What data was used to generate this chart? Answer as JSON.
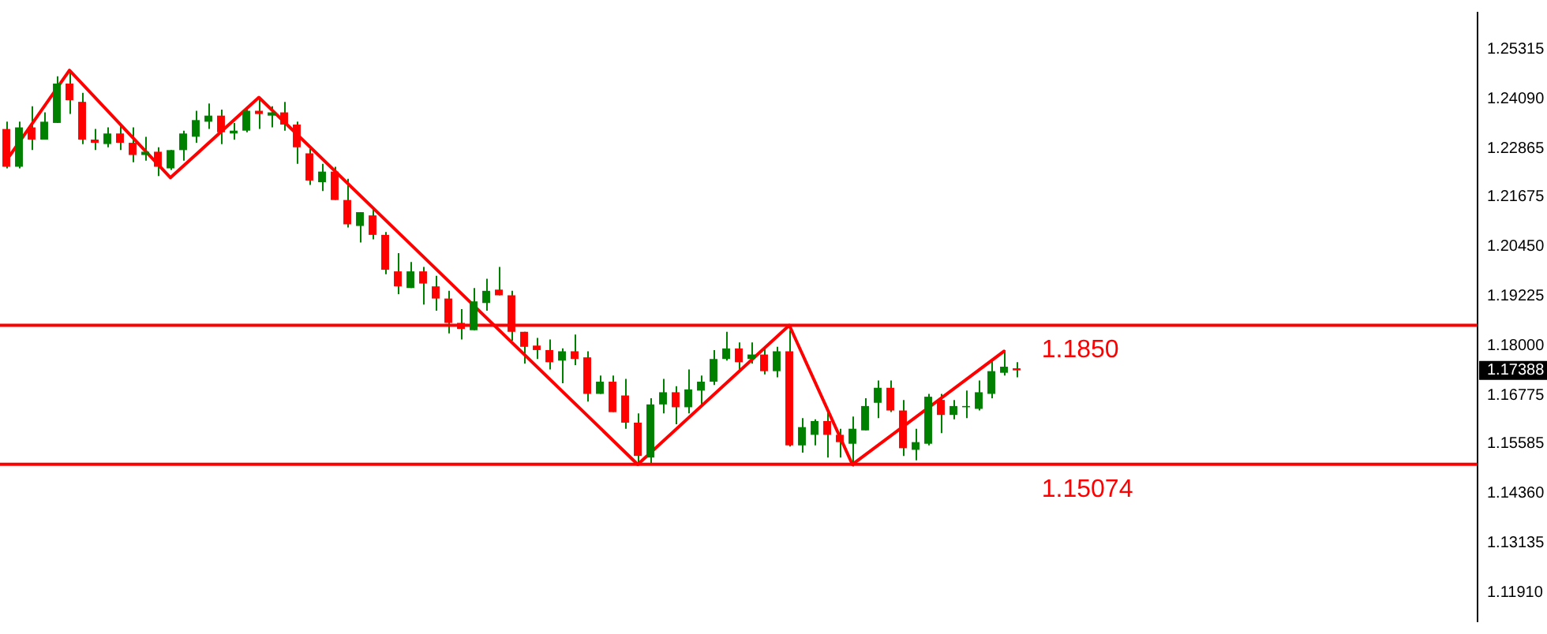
{
  "chart_data": {
    "type": "candlestick",
    "categories": [
      null,
      null,
      null,
      null,
      null,
      null,
      null,
      null,
      null,
      null,
      null,
      null,
      null,
      null,
      null,
      null,
      null,
      null,
      null,
      null,
      null,
      null,
      null,
      null,
      null,
      null,
      null,
      null,
      null,
      null,
      null,
      null,
      null,
      null,
      null,
      null,
      null,
      null,
      null,
      null,
      null,
      null,
      null,
      null,
      null,
      null,
      null,
      null,
      null,
      null,
      null,
      null,
      null,
      null,
      null,
      null,
      null,
      null,
      null,
      null,
      null,
      null,
      null,
      null,
      null,
      null,
      null,
      null,
      null,
      null,
      null,
      null,
      null,
      null,
      null,
      null,
      null,
      null,
      null,
      null,
      null,
      null,
      null,
      null,
      null,
      null,
      null,
      null,
      null,
      null,
      null,
      null,
      null,
      null,
      null,
      null,
      null,
      null,
      null,
      null,
      null,
      null,
      null,
      null,
      null,
      null,
      null,
      null,
      null,
      null,
      null,
      null,
      null,
      null,
      null,
      null,
      null
    ],
    "series": [
      {
        "color": "#008000",
        "ohlc": [
          [
            1.2334,
            1.2352,
            1.2237,
            1.2241
          ],
          [
            1.2241,
            1.2352,
            1.2237,
            1.2338
          ],
          [
            1.2338,
            1.239,
            1.2282,
            1.2308
          ],
          [
            1.2308,
            1.2375,
            1.2308,
            1.2352
          ],
          [
            1.2349,
            1.2464,
            1.2349,
            1.2446
          ],
          [
            1.2446,
            1.2479,
            1.2371,
            1.2405
          ],
          [
            1.2401,
            1.2423,
            1.2297,
            1.2308
          ],
          [
            1.2308,
            1.2334,
            1.2282,
            1.23
          ],
          [
            1.2297,
            1.2338,
            1.2289,
            1.2323
          ],
          [
            1.2323,
            1.2345,
            1.2282,
            1.23
          ],
          [
            1.23,
            1.2338,
            1.2252,
            1.227
          ],
          [
            1.227,
            1.2315,
            1.2256,
            1.2278
          ],
          [
            1.2278,
            1.2289,
            1.2218,
            1.2241
          ],
          [
            1.2237,
            1.2282,
            1.2233,
            1.2282
          ],
          [
            1.2282,
            1.233,
            1.2256,
            1.2323
          ],
          [
            1.2315,
            1.2379,
            1.23,
            1.2356
          ],
          [
            1.2352,
            1.2397,
            1.2334,
            1.2367
          ],
          [
            1.2367,
            1.2382,
            1.2297,
            1.2326
          ],
          [
            1.2323,
            1.2349,
            1.2308,
            1.233
          ],
          [
            1.233,
            1.2382,
            1.2326,
            1.2379
          ],
          [
            1.2379,
            1.2408,
            1.2334,
            1.2371
          ],
          [
            1.2367,
            1.239,
            1.2338,
            1.2375
          ],
          [
            1.2375,
            1.2401,
            1.233,
            1.2345
          ],
          [
            1.2345,
            1.2352,
            1.2248,
            1.2289
          ],
          [
            1.2274,
            1.2285,
            1.2196,
            1.2207
          ],
          [
            1.2203,
            1.2248,
            1.2181,
            1.2229
          ],
          [
            1.2229,
            1.2241,
            1.2159,
            1.2159
          ],
          [
            1.2159,
            1.2211,
            1.2091,
            1.2099
          ],
          [
            1.2095,
            1.2129,
            1.2054,
            1.2129
          ],
          [
            1.2121,
            1.214,
            1.2062,
            1.2073
          ],
          [
            1.2073,
            1.208,
            1.1976,
            1.1987
          ],
          [
            1.1983,
            1.2028,
            1.1927,
            1.1946
          ],
          [
            1.1942,
            1.2006,
            1.1942,
            1.1983
          ],
          [
            1.1983,
            1.1994,
            1.1901,
            1.1953
          ],
          [
            1.1946,
            1.1972,
            1.1886,
            1.1916
          ],
          [
            1.1916,
            1.1935,
            1.183,
            1.1856
          ],
          [
            1.1856,
            1.189,
            1.1815,
            1.1841
          ],
          [
            1.1838,
            1.1942,
            1.1838,
            1.1909
          ],
          [
            1.1905,
            1.1965,
            1.1886,
            1.1935
          ],
          [
            1.1938,
            1.1994,
            1.1924,
            1.1924
          ],
          [
            1.1924,
            1.1935,
            1.1812,
            1.1834
          ],
          [
            1.1834,
            1.1834,
            1.1756,
            1.1797
          ],
          [
            1.18,
            1.1819,
            1.1767,
            1.1789
          ],
          [
            1.1789,
            1.1815,
            1.1741,
            1.1759
          ],
          [
            1.1763,
            1.1793,
            1.1707,
            1.1786
          ],
          [
            1.1786,
            1.1827,
            1.1752,
            1.1767
          ],
          [
            1.1771,
            1.1786,
            1.1662,
            1.1681
          ],
          [
            1.1681,
            1.1726,
            1.1681,
            1.1711
          ],
          [
            1.1711,
            1.1726,
            1.1636,
            1.1636
          ],
          [
            1.1677,
            1.1718,
            1.1595,
            1.161
          ],
          [
            1.161,
            1.1633,
            1.1506,
            1.1528
          ],
          [
            1.1524,
            1.167,
            1.151,
            1.1655
          ],
          [
            1.1655,
            1.1718,
            1.1633,
            1.1685
          ],
          [
            1.1685,
            1.17,
            1.1606,
            1.1648
          ],
          [
            1.1648,
            1.1741,
            1.1633,
            1.1692
          ],
          [
            1.1689,
            1.1726,
            1.1651,
            1.1711
          ],
          [
            1.1711,
            1.1789,
            1.1703,
            1.1767
          ],
          [
            1.1767,
            1.1834,
            1.1763,
            1.1793
          ],
          [
            1.1793,
            1.1808,
            1.1737,
            1.1759
          ],
          [
            1.1767,
            1.1808,
            1.1756,
            1.1778
          ],
          [
            1.1778,
            1.1793,
            1.1729,
            1.1737
          ],
          [
            1.1737,
            1.1797,
            1.1722,
            1.1786
          ],
          [
            1.1786,
            1.1838,
            1.1551,
            1.1554
          ],
          [
            1.1554,
            1.1621,
            1.1536,
            1.1599
          ],
          [
            1.158,
            1.1618,
            1.1554,
            1.1614
          ],
          [
            1.1614,
            1.1636,
            1.1524,
            1.158
          ],
          [
            1.158,
            1.1595,
            1.1524,
            1.1562
          ],
          [
            1.1558,
            1.1625,
            1.1502,
            1.1595
          ],
          [
            1.1591,
            1.167,
            1.1591,
            1.1651
          ],
          [
            1.1659,
            1.1714,
            1.1621,
            1.1696
          ],
          [
            1.1696,
            1.1714,
            1.1636,
            1.164
          ],
          [
            1.164,
            1.1666,
            1.1528,
            1.1547
          ],
          [
            1.1543,
            1.1595,
            1.1517,
            1.1562
          ],
          [
            1.1558,
            1.1681,
            1.1554,
            1.1674
          ],
          [
            1.1666,
            1.1681,
            1.1584,
            1.1629
          ],
          [
            1.1629,
            1.1666,
            1.1618,
            1.1651
          ],
          [
            1.1648,
            1.1689,
            1.1621,
            1.1651
          ],
          [
            1.1644,
            1.1714,
            1.164,
            1.1685
          ],
          [
            1.1681,
            1.1763,
            1.167,
            1.1737
          ],
          [
            1.1733,
            1.1789,
            1.1726,
            1.1748
          ],
          [
            1.1744,
            1.1759,
            1.1722,
            1.1739
          ],
          null,
          null,
          null,
          null,
          null,
          null,
          null,
          null,
          null,
          null,
          null,
          null,
          null,
          null,
          null,
          null,
          null,
          null,
          null,
          null,
          null,
          null,
          null,
          null,
          null,
          null,
          null,
          null,
          null,
          null,
          null,
          null,
          null,
          null,
          null,
          null
        ],
        "colors": [
          "#ff0000",
          "#008000",
          "#ff0000",
          "#008000",
          "#008000",
          "#ff0000",
          "#ff0000",
          "#ff0000",
          "#008000",
          "#ff0000",
          "#ff0000",
          "#008000",
          "#ff0000",
          "#008000",
          "#008000",
          "#008000",
          "#008000",
          "#ff0000",
          "#008000",
          "#008000",
          "#ff0000",
          "#008000",
          "#ff0000",
          "#ff0000",
          "#ff0000",
          "#008000",
          "#ff0000",
          "#ff0000",
          "#008000",
          "#ff0000",
          "#ff0000",
          "#ff0000",
          "#008000",
          "#ff0000",
          "#ff0000",
          "#ff0000",
          "#ff0000",
          "#008000",
          "#008000",
          "#ff0000",
          "#ff0000",
          "#ff0000",
          "#ff0000",
          "#ff0000",
          "#008000",
          "#ff0000",
          "#ff0000",
          "#008000",
          "#ff0000",
          "#ff0000",
          "#ff0000",
          "#008000",
          "#008000",
          "#ff0000",
          "#008000",
          "#008000",
          "#008000",
          "#008000",
          "#ff0000",
          "#008000",
          "#ff0000",
          "#008000",
          "#ff0000",
          "#008000",
          "#008000",
          "#ff0000",
          "#ff0000",
          "#008000",
          "#008000",
          "#008000",
          "#ff0000",
          "#ff0000",
          "#008000",
          "#008000",
          "#ff0000",
          "#008000",
          "#008000",
          "#008000",
          "#008000",
          "#008000",
          "#ff0000",
          null,
          null,
          null,
          null,
          null,
          null,
          null,
          null,
          null,
          null,
          null,
          null,
          null,
          null,
          null,
          null,
          null,
          null,
          null,
          null,
          null,
          null,
          null,
          null,
          null,
          null,
          null,
          null,
          null,
          null,
          null,
          null,
          null,
          null,
          null,
          null
        ]
      },
      {
        "type": "line",
        "color": "#ff0000",
        "values": [
          1.2256,
          null,
          null,
          null,
          null,
          1.2479,
          null,
          null,
          null,
          null,
          null,
          null,
          null,
          1.2214,
          null,
          null,
          null,
          null,
          null,
          null,
          1.2412,
          null,
          null,
          null,
          null,
          null,
          null,
          null,
          null,
          null,
          null,
          null,
          null,
          null,
          null,
          null,
          null,
          null,
          null,
          null,
          null,
          null,
          null,
          null,
          null,
          null,
          null,
          null,
          null,
          null,
          1.1507,
          null,
          null,
          null,
          null,
          null,
          null,
          null,
          null,
          null,
          null,
          null,
          1.185,
          null,
          null,
          null,
          null,
          1.1507,
          null,
          null,
          null,
          null,
          null,
          null,
          null,
          null,
          null,
          null,
          null,
          1.1786,
          null,
          null,
          null,
          null,
          null,
          null,
          null,
          null,
          null,
          null,
          null,
          null,
          null,
          null,
          null,
          null,
          null,
          null,
          null,
          null,
          null,
          null,
          null,
          null,
          null,
          null,
          null,
          null,
          null,
          null,
          null,
          null,
          null,
          null,
          null,
          null,
          null
        ]
      }
    ],
    "ylim": [
      1.112,
      1.2621
    ],
    "yticks": [
      1.25315,
      {
        "value": 1.2409,
        "label": "1.24090"
      },
      1.22865,
      1.21675,
      {
        "value": 1.2045,
        "label": "1.20450"
      },
      1.19225,
      {
        "value": 1.18,
        "label": "1.18000"
      },
      1.16775,
      1.15585,
      {
        "value": 1.1436,
        "label": "1.14360"
      },
      1.13135,
      {
        "value": 1.1191,
        "label": "1.11910"
      }
    ],
    "tick_labels": "y",
    "grid": false,
    "legend": false,
    "ref_lines": [
      {
        "axis": "y",
        "value": 1.185,
        "label": "1.1850",
        "color": "#ff0000"
      },
      {
        "axis": "y",
        "value": 1.15074,
        "label": "1.15074",
        "color": "#ff0000"
      }
    ],
    "annotations": [
      "1.17388"
    ]
  }
}
